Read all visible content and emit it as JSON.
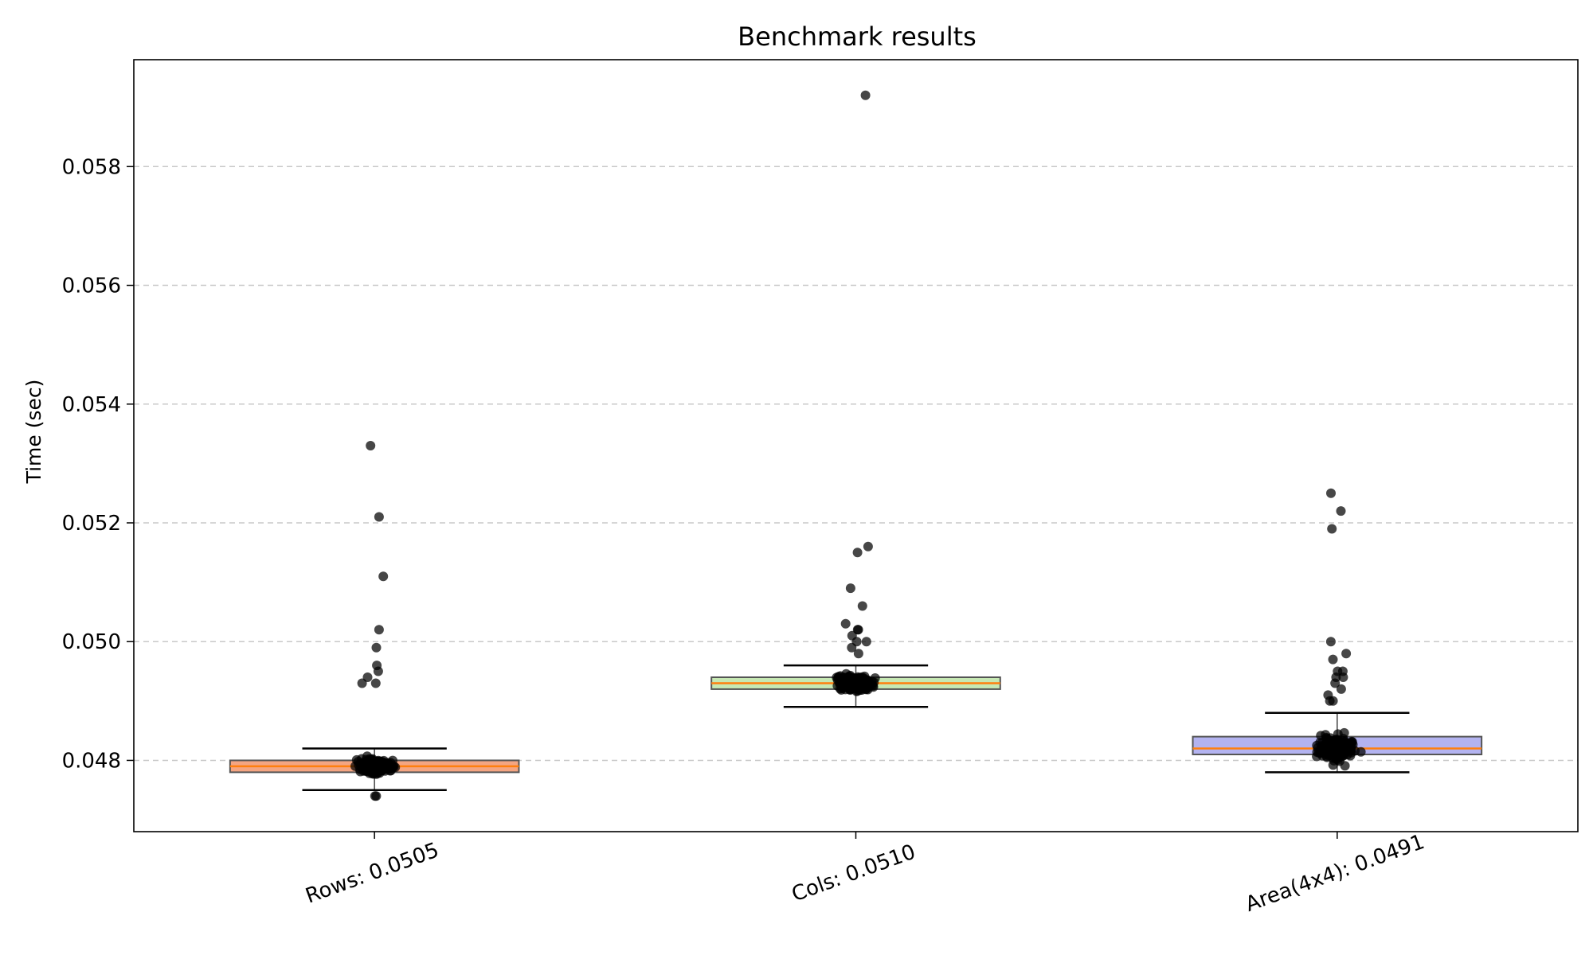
{
  "chart_data": {
    "type": "box",
    "title": "Benchmark results",
    "xlabel": "",
    "ylabel": "Time (sec)",
    "ylim": [
      0.0468,
      0.0598
    ],
    "yticks": [
      0.048,
      0.05,
      0.052,
      0.054,
      0.056,
      0.058
    ],
    "ytick_labels": [
      "0.048",
      "0.050",
      "0.052",
      "0.054",
      "0.056",
      "0.058"
    ],
    "grid": {
      "y": true,
      "style": "dashed"
    },
    "categories": [
      "Rows: 0.0505",
      "Cols: 0.0510",
      "Area(4x4): 0.0491"
    ],
    "boxes": [
      {
        "q1": 0.0478,
        "median": 0.0479,
        "q3": 0.048,
        "whisker_low": 0.0475,
        "whisker_high": 0.0482,
        "fill": "#f4a582",
        "outliers": [
          0.0533,
          0.0521,
          0.0511,
          0.0502,
          0.0499,
          0.0496,
          0.0495,
          0.0494,
          0.0493,
          0.0493,
          0.0474,
          0.0474
        ]
      },
      {
        "q1": 0.0492,
        "median": 0.0493,
        "q3": 0.0494,
        "whisker_low": 0.0489,
        "whisker_high": 0.0496,
        "fill": "#c7e9b4",
        "outliers": [
          0.0592,
          0.0516,
          0.0515,
          0.0509,
          0.0506,
          0.0503,
          0.0502,
          0.0502,
          0.0501,
          0.05,
          0.05,
          0.0499,
          0.0498
        ]
      },
      {
        "q1": 0.0481,
        "median": 0.0482,
        "q3": 0.0484,
        "whisker_low": 0.0478,
        "whisker_high": 0.0488,
        "fill": "#b3b3f0",
        "outliers": [
          0.0525,
          0.0522,
          0.0519,
          0.05,
          0.0498,
          0.0497,
          0.0495,
          0.0495,
          0.0494,
          0.0494,
          0.0493,
          0.0492,
          0.0491,
          0.049,
          0.049
        ]
      }
    ],
    "point_color": "#000000",
    "median_color": "#ff7f0e"
  }
}
